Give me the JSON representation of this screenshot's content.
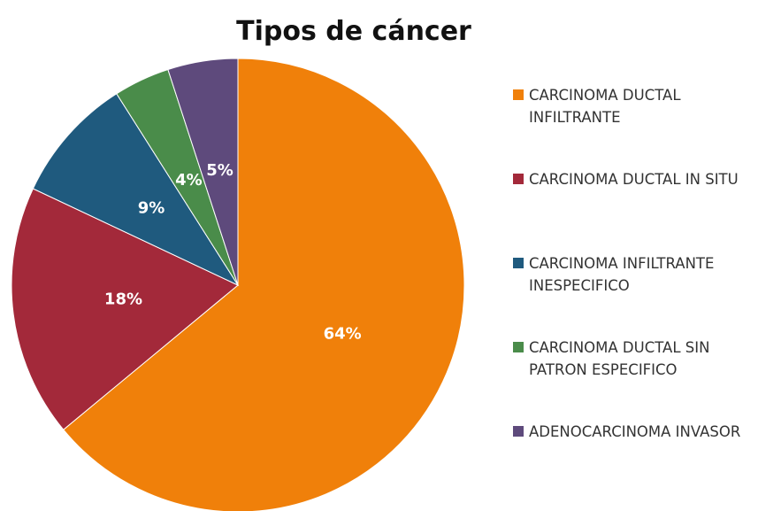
{
  "chart_data": {
    "type": "pie",
    "title": "Tipos de cáncer",
    "categories": [
      "CARCINOMA DUCTAL INFILTRANTE",
      "CARCINOMA DUCTAL IN SITU",
      "CARCINOMA INFILTRANTE INESPECIFICO",
      "CARCINOMA DUCTAL SIN PATRON ESPECIFICO",
      "ADENOCARCINOMA INVASOR"
    ],
    "values": [
      64,
      18,
      9,
      4,
      5
    ],
    "value_labels": [
      "64%",
      "18%",
      "9%",
      "4%",
      "5%"
    ],
    "colors": [
      "#f0800a",
      "#a3293a",
      "#1f5a7e",
      "#4a8c4a",
      "#5e4a7c"
    ],
    "legend": "right"
  }
}
